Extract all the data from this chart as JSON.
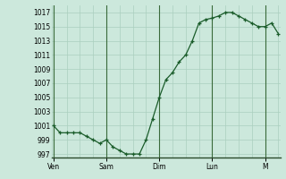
{
  "background_color": "#cce8dc",
  "grid_color_major": "#aacfbe",
  "grid_color_minor": "#bbdacc",
  "line_color": "#1a5c2a",
  "marker_color": "#1a5c2a",
  "x_tick_labels": [
    "Ven",
    "Sam",
    "Dim",
    "Lun",
    "M"
  ],
  "x_tick_positions": [
    0,
    8,
    16,
    24,
    32
  ],
  "ylim": [
    996.5,
    1018.0
  ],
  "yticks": [
    997,
    999,
    1001,
    1003,
    1005,
    1007,
    1009,
    1011,
    1013,
    1015,
    1017
  ],
  "xlim": [
    -0.3,
    34.3
  ],
  "pressure_values": [
    1001,
    1000,
    1000,
    1000,
    1000,
    999.5,
    999,
    998.5,
    999,
    998,
    997.5,
    997,
    997,
    997,
    999,
    1002,
    1005,
    1007.5,
    1008.5,
    1010,
    1011,
    1013,
    1015.5,
    1016,
    1016.2,
    1016.5,
    1017,
    1017,
    1016.5,
    1016,
    1015.5,
    1015,
    1015,
    1015.5,
    1014
  ]
}
